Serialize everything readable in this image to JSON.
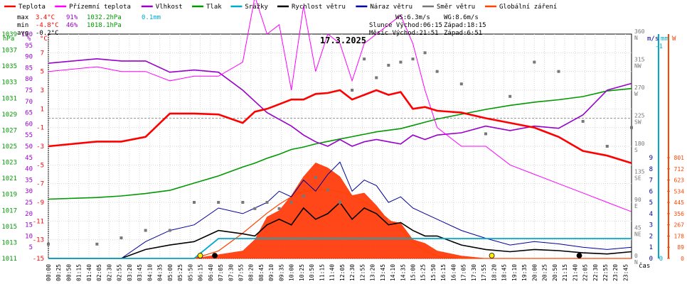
{
  "chart_data": {
    "type": "line",
    "title": "17.3.2025",
    "legend": [
      {
        "label": "Teplota",
        "color": "#ff0000",
        "kind": "line"
      },
      {
        "label": "Přízemní teplota",
        "color": "#ff00ff",
        "kind": "line"
      },
      {
        "label": "Vlhkost",
        "color": "#9900cc",
        "kind": "line"
      },
      {
        "label": "Tlak",
        "color": "#009900",
        "kind": "line"
      },
      {
        "label": "Srážky",
        "color": "#00aacc",
        "kind": "line"
      },
      {
        "label": "Rychlost větru",
        "color": "#000000",
        "kind": "line"
      },
      {
        "label": "Náraz větru",
        "color": "#000099",
        "kind": "line"
      },
      {
        "label": "Směr větru",
        "color": "#777777",
        "kind": "line"
      },
      {
        "label": "Globální záření",
        "color": "#ff4400",
        "kind": "line"
      }
    ],
    "stats": {
      "max": {
        "label": "max",
        "temp": "3.4°C",
        "hum": "91%",
        "press": "1032.2hPa",
        "rain": "0.1mm"
      },
      "min": {
        "label": "min",
        "temp": "-4.8°C",
        "hum": "46%",
        "press": "1018.1hPa"
      },
      "avg": {
        "label": "avg",
        "temp": "-0.2°C"
      }
    },
    "wind_info": {
      "ws": "WS:6.3m/s",
      "wg": "WG:8.6m/s",
      "sun": "Slunce Východ:06:15",
      "sun_set": "Západ:18:15",
      "moon": "Měsíc  Východ:21:51",
      "moon_set": "Západ:6:51"
    },
    "axes": {
      "hpa_unit": "hPa",
      "hum_unit": "%",
      "temp_unit": "°C",
      "dir_unit": "m/s",
      "rain_unit": "mm",
      "rad_unit": "W",
      "x_unit": "čas",
      "hpa_ticks": [
        "1039",
        "1037",
        "1035",
        "1033",
        "1031",
        "1029",
        "1027",
        "1025",
        "1023",
        "1021",
        "1019",
        "1017",
        "1015",
        "1013",
        "1011"
      ],
      "hum_ticks": [
        "100",
        "95",
        "90",
        "85",
        "80",
        "75",
        "70",
        "65",
        "60",
        "55",
        "50",
        "45",
        "40",
        "35",
        "30",
        "25",
        "20",
        "15",
        "10",
        "5"
      ],
      "temp_ticks": [
        "7",
        "5",
        "3",
        "1",
        "-1",
        "-3",
        "-5",
        "-7",
        "-9",
        "-11",
        "-13",
        "-15"
      ],
      "temp_range": [
        -15,
        9
      ],
      "hum_range": [
        0,
        100
      ],
      "press_range": [
        1011,
        1039
      ],
      "dir_ticks": [
        {
          "v": "360",
          "l": "N"
        },
        {
          "v": "315",
          "l": "NW"
        },
        {
          "v": "270",
          "l": "W"
        },
        {
          "v": "225",
          "l": "SW"
        },
        {
          "v": "180",
          "l": "S"
        },
        {
          "v": "135",
          "l": "SE"
        },
        {
          "v": "90",
          "l": "E"
        },
        {
          "v": "45",
          "l": "NE"
        },
        {
          "v": "0",
          "l": "N"
        }
      ],
      "wind_ticks": [
        "9",
        "8",
        "7",
        "6",
        "5",
        "4",
        "3",
        "2",
        "1",
        "0"
      ],
      "rain_ticks": [
        "-1",
        "0"
      ],
      "rad_ticks": [
        "801",
        "712",
        "623",
        "534",
        "445",
        "356",
        "267",
        "178",
        "89",
        "0"
      ],
      "time_ticks": [
        "00:00",
        "00:25",
        "00:50",
        "01:15",
        "01:40",
        "02:05",
        "02:30",
        "02:55",
        "03:20",
        "03:45",
        "04:10",
        "04:35",
        "05:00",
        "05:25",
        "05:50",
        "06:15",
        "06:40",
        "07:05",
        "07:30",
        "07:55",
        "08:20",
        "08:45",
        "09:10",
        "09:35",
        "10:00",
        "10:25",
        "10:50",
        "11:15",
        "11:40",
        "12:05",
        "12:30",
        "12:55",
        "13:20",
        "13:45",
        "14:10",
        "14:35",
        "15:00",
        "15:25",
        "15:50",
        "16:15",
        "16:40",
        "17:05",
        "17:30",
        "17:55",
        "18:20",
        "18:45",
        "19:10",
        "19:35",
        "20:00",
        "20:25",
        "20:50",
        "21:15",
        "21:40",
        "22:05",
        "22:30",
        "22:55",
        "23:20",
        "23:45"
      ]
    },
    "x_hours": [
      0,
      2,
      3,
      4,
      5,
      6,
      7,
      8,
      8.5,
      9,
      9.5,
      10,
      10.5,
      11,
      11.5,
      12,
      12.5,
      13,
      13.5,
      14,
      14.5,
      15,
      15.5,
      16,
      17,
      18,
      19,
      20,
      21,
      22,
      23,
      24
    ],
    "series": {
      "temperature": [
        -3,
        -2.5,
        -2.5,
        -2,
        0.5,
        0.5,
        0.4,
        -0.5,
        0.7,
        1,
        1.5,
        2,
        2,
        2.6,
        2.7,
        3,
        2,
        2.5,
        3,
        2.5,
        2.8,
        1,
        1.2,
        0.8,
        0.6,
        0,
        -0.5,
        -1,
        -2,
        -3.5,
        -4,
        -4.8
      ],
      "ground_temperature": [
        5,
        5.5,
        5,
        5,
        4,
        4.5,
        4.5,
        6,
        13,
        9,
        10,
        3,
        12,
        5,
        9,
        8,
        4,
        8,
        9,
        10,
        11,
        8,
        3,
        -1,
        -3,
        -3,
        -5,
        -6,
        -7,
        -8,
        -9,
        -10
      ],
      "humidity": [
        87,
        89,
        88,
        88,
        83,
        84,
        83,
        75,
        70,
        65,
        62,
        59,
        55,
        52,
        50,
        53,
        50,
        52,
        53,
        52,
        51,
        55,
        53,
        55,
        56,
        59,
        57,
        59,
        58,
        64,
        75,
        78
      ],
      "pressure": [
        1018.4,
        1018.6,
        1018.8,
        1019.1,
        1019.5,
        1020.4,
        1021.3,
        1022.4,
        1022.9,
        1023.5,
        1024.0,
        1024.6,
        1024.9,
        1025.3,
        1025.6,
        1025.9,
        1026.2,
        1026.5,
        1026.8,
        1027.0,
        1027.2,
        1027.6,
        1028.0,
        1028.4,
        1029.0,
        1029.6,
        1030.1,
        1030.5,
        1030.8,
        1031.2,
        1031.9,
        1032.2
      ],
      "wind_speed": [
        0,
        0,
        0,
        0.8,
        1.2,
        1.5,
        2.5,
        2.2,
        2,
        3,
        3.5,
        3,
        4.5,
        3.5,
        4,
        5,
        3.5,
        4.5,
        4,
        3,
        3.2,
        2.5,
        2,
        2,
        1.2,
        0.8,
        0.6,
        0.8,
        0.7,
        0.5,
        0.4,
        0.6
      ],
      "wind_gust": [
        0,
        0,
        0,
        1.5,
        2.5,
        3,
        4.5,
        4,
        4.5,
        5,
        6,
        5.5,
        7,
        6,
        7.5,
        8.6,
        6,
        7,
        6.5,
        5,
        5.5,
        4.5,
        4,
        3.5,
        2.5,
        1.8,
        1.2,
        1.5,
        1.3,
        1,
        0.8,
        1
      ],
      "wind_direction": [
        23,
        23,
        33,
        45,
        45,
        90,
        90,
        90,
        80,
        90,
        80,
        90,
        100,
        130,
        110,
        90,
        270,
        320,
        290,
        310,
        315,
        320,
        330,
        300,
        280,
        200,
        260,
        315,
        300,
        220,
        180,
        210
      ],
      "rain": [
        0,
        0,
        0,
        0,
        0,
        0,
        0.04,
        0.06,
        0.08,
        0.08,
        0.08,
        0.08,
        0.08,
        0.08,
        0.08,
        0.08,
        0.08,
        0.08,
        0.08,
        0.08,
        0.08,
        0.08,
        0.08,
        0.08,
        0.08,
        0.08,
        0.08,
        0.08,
        0.08,
        0.08,
        0.08,
        0.08
      ],
      "radiation": [
        0,
        0,
        0,
        0,
        0,
        0,
        30,
        60,
        150,
        330,
        380,
        500,
        650,
        760,
        720,
        650,
        500,
        520,
        420,
        300,
        280,
        150,
        120,
        60,
        20,
        0,
        0,
        0,
        0,
        0,
        0,
        0
      ],
      "radiation_theoretical": [
        0,
        0,
        0,
        0,
        0,
        0,
        60,
        200,
        280,
        360,
        430,
        490,
        530,
        545,
        545,
        530,
        500,
        450,
        390,
        310,
        230,
        130,
        60,
        20,
        0,
        0,
        0,
        0,
        0,
        0,
        0,
        0
      ]
    }
  }
}
